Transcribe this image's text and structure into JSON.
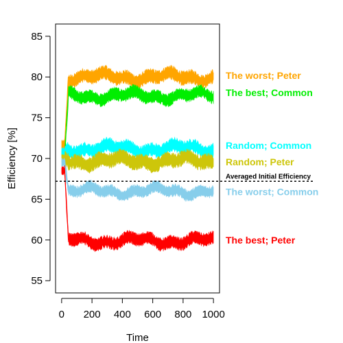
{
  "chart_data": {
    "type": "line",
    "title": "",
    "xlabel": "Time",
    "ylabel": "Efficiency [%]",
    "xlim": [
      -40,
      1040
    ],
    "ylim": [
      53.5,
      86.5
    ],
    "xticks": [
      0,
      200,
      400,
      600,
      800,
      1000
    ],
    "xtick_labels": [
      "0",
      "200",
      "400",
      "600",
      "800",
      "1000"
    ],
    "yticks": [
      55,
      60,
      65,
      70,
      75,
      80,
      85
    ],
    "ytick_labels": [
      "55",
      "60",
      "65",
      "70",
      "75",
      "80",
      "85"
    ],
    "grid": false,
    "legend": "none; series labelled directly at right edge",
    "reference_line": {
      "y": 67.2,
      "style": "dotted",
      "color": "#000000",
      "label": "Averaged Initial Efficiency"
    },
    "series": [
      {
        "name": "The worst; Peter",
        "color": "#FFA500",
        "start": 71.7,
        "steady": 80.0,
        "band": 1.3,
        "label_y": 80.2
      },
      {
        "name": "The best; Common",
        "color": "#00EE00",
        "start": 70.5,
        "steady": 77.7,
        "band": 1.2,
        "label_y": 78.1
      },
      {
        "name": "Random; Common",
        "color": "#00FFFF",
        "start": 70.8,
        "steady": 71.2,
        "band": 1.3,
        "label_y": 71.6
      },
      {
        "name": "Random; Peter",
        "color": "#CDC60A",
        "start": 70.0,
        "steady": 69.7,
        "band": 1.4,
        "label_y": 69.6
      },
      {
        "name": "The worst; Common",
        "color": "#87CEEB",
        "start": 69.5,
        "steady": 66.0,
        "band": 1.1,
        "label_y": 65.9
      },
      {
        "name": "The best; Peter",
        "color": "#FF0000",
        "start": 68.5,
        "steady": 59.9,
        "band": 1.2,
        "label_y": 60.0
      }
    ]
  }
}
